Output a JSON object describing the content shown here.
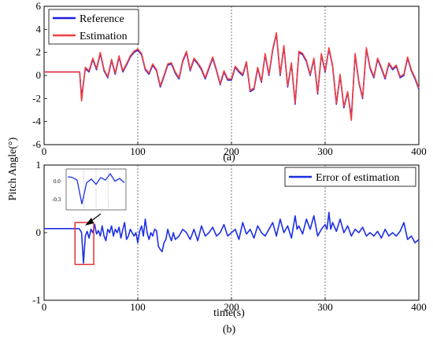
{
  "figure": {
    "ylabel": "Pitch Angle(°)",
    "xlabel": "time(s)",
    "panel_a_label": "(a)",
    "panel_b_label": "(b)"
  },
  "colors": {
    "reference": "#1f1fe0",
    "estimation": "#f04040",
    "error": "#1c2fe6",
    "highlight": "#e43030"
  },
  "chart_data": [
    {
      "type": "line",
      "panel": "(a)",
      "xlim": [
        0,
        400
      ],
      "ylim": [
        -6,
        6
      ],
      "xticks": [
        0,
        100,
        200,
        300,
        400
      ],
      "yticks": [
        -6,
        -4,
        -2,
        0,
        2,
        4,
        6
      ],
      "vlines": [
        100,
        200,
        300
      ],
      "legend_position": "top-left",
      "grid": false,
      "series": [
        {
          "name": "Reference",
          "x": [
            0,
            35,
            38,
            40,
            44,
            48,
            52,
            56,
            60,
            64,
            68,
            72,
            76,
            80,
            84,
            88,
            92,
            96,
            100,
            104,
            108,
            112,
            116,
            120,
            124,
            128,
            132,
            136,
            140,
            144,
            148,
            152,
            156,
            160,
            164,
            168,
            172,
            176,
            180,
            184,
            188,
            192,
            196,
            200,
            204,
            208,
            212,
            216,
            220,
            224,
            228,
            232,
            236,
            240,
            244,
            248,
            252,
            256,
            260,
            264,
            268,
            272,
            276,
            280,
            284,
            288,
            292,
            296,
            300,
            304,
            308,
            312,
            316,
            320,
            324,
            328,
            332,
            336,
            340,
            344,
            348,
            352,
            356,
            360,
            364,
            368,
            372,
            376,
            380,
            384,
            388,
            392,
            396,
            400
          ],
          "y": [
            0.3,
            0.3,
            0.3,
            -1.9,
            0.6,
            0.3,
            1.4,
            0.5,
            1.9,
            0.4,
            -0.2,
            1.3,
            0.1,
            1.6,
            0.3,
            0.9,
            1.6,
            2.0,
            2.2,
            1.8,
            0.5,
            0.1,
            0.9,
            0.4,
            -1.0,
            -0.1,
            0.9,
            1.0,
            0.2,
            -0.3,
            1.2,
            2.0,
            0.4,
            1.4,
            1.0,
            0.5,
            -0.3,
            0.6,
            1.5,
            0.4,
            -0.8,
            0.3,
            -0.4,
            -0.4,
            0.7,
            0.3,
            0.0,
            1.1,
            -1.4,
            -1.2,
            0.6,
            -0.6,
            1.8,
            0.0,
            2.2,
            3.6,
            0.0,
            2.5,
            -1.0,
            1.0,
            -2.5,
            2.0,
            1.8,
            1.2,
            0.0,
            1.4,
            -1.6,
            1.8,
            0.3,
            2.3,
            0.8,
            -2.5,
            0.0,
            -2.8,
            -1.5,
            -3.6,
            1.8,
            -0.6,
            -2.0,
            2.3,
            0.6,
            -0.2,
            1.4,
            0.6,
            -0.3,
            1.0,
            0.5,
            0.8,
            -0.2,
            0.0,
            1.5,
            0.4,
            -0.3,
            -1.2
          ]
        },
        {
          "name": "Estimation",
          "x": [
            0,
            35,
            38,
            40,
            44,
            48,
            52,
            56,
            60,
            64,
            68,
            72,
            76,
            80,
            84,
            88,
            92,
            96,
            100,
            104,
            108,
            112,
            116,
            120,
            124,
            128,
            132,
            136,
            140,
            144,
            148,
            152,
            156,
            160,
            164,
            168,
            172,
            176,
            180,
            184,
            188,
            192,
            196,
            200,
            204,
            208,
            212,
            216,
            220,
            224,
            228,
            232,
            236,
            240,
            244,
            248,
            252,
            256,
            260,
            264,
            268,
            272,
            276,
            280,
            284,
            288,
            292,
            296,
            300,
            304,
            308,
            312,
            316,
            320,
            324,
            328,
            332,
            336,
            340,
            344,
            348,
            352,
            356,
            360,
            364,
            368,
            372,
            376,
            380,
            384,
            388,
            392,
            396,
            400
          ],
          "y": [
            0.3,
            0.3,
            0.3,
            -2.2,
            0.7,
            0.4,
            1.5,
            0.6,
            2.0,
            0.5,
            -0.1,
            1.4,
            0.2,
            1.7,
            0.4,
            1.0,
            1.7,
            2.1,
            2.3,
            1.9,
            0.6,
            0.2,
            1.0,
            0.5,
            -0.9,
            0.0,
            1.0,
            1.1,
            0.3,
            -0.2,
            1.3,
            2.1,
            0.5,
            1.5,
            1.1,
            0.6,
            -0.2,
            0.7,
            1.6,
            0.5,
            -0.7,
            0.4,
            -0.3,
            -0.3,
            0.8,
            0.4,
            0.1,
            1.2,
            -1.3,
            -1.1,
            0.7,
            -0.5,
            1.9,
            0.1,
            2.3,
            3.7,
            0.1,
            2.6,
            -0.9,
            1.1,
            -2.4,
            2.1,
            1.9,
            1.3,
            0.1,
            1.5,
            -1.5,
            1.9,
            0.4,
            2.4,
            0.9,
            -2.4,
            0.1,
            -2.7,
            -1.4,
            -3.9,
            1.9,
            -0.5,
            -1.9,
            2.4,
            0.7,
            -0.1,
            1.5,
            0.7,
            -0.2,
            1.1,
            0.6,
            0.9,
            -0.1,
            0.1,
            1.6,
            0.5,
            -0.2,
            -1.1
          ]
        }
      ]
    },
    {
      "type": "line",
      "panel": "(b)",
      "xlim": [
        0,
        400
      ],
      "ylim": [
        -1,
        1
      ],
      "xticks": [
        0,
        100,
        200,
        300,
        400
      ],
      "yticks": [
        -1,
        0,
        1
      ],
      "vlines": [
        100,
        200,
        300
      ],
      "legend_position": "top-right",
      "grid": false,
      "series": [
        {
          "name": "Error of estimation",
          "x": [
            0,
            36,
            37,
            38,
            40,
            42,
            44,
            46,
            48,
            50,
            52,
            54,
            56,
            58,
            60,
            62,
            64,
            66,
            68,
            70,
            72,
            74,
            76,
            78,
            80,
            82,
            84,
            86,
            88,
            90,
            92,
            94,
            96,
            98,
            100,
            102,
            104,
            106,
            108,
            110,
            112,
            114,
            116,
            118,
            120,
            122,
            124,
            126,
            128,
            130,
            132,
            134,
            136,
            138,
            140,
            144,
            148,
            152,
            156,
            160,
            164,
            168,
            172,
            176,
            180,
            184,
            188,
            192,
            196,
            200,
            204,
            208,
            212,
            216,
            220,
            224,
            228,
            232,
            236,
            240,
            244,
            248,
            252,
            256,
            260,
            264,
            268,
            270,
            272,
            276,
            280,
            284,
            288,
            292,
            296,
            300,
            302,
            304,
            306,
            308,
            312,
            316,
            320,
            324,
            328,
            332,
            336,
            340,
            344,
            348,
            352,
            356,
            360,
            364,
            368,
            372,
            376,
            380,
            384,
            388,
            392,
            396,
            400
          ],
          "y": [
            0.06,
            0.06,
            0.06,
            0.05,
            0.0,
            -0.45,
            -0.05,
            0.02,
            -0.08,
            0.05,
            0.0,
            0.12,
            -0.02,
            0.03,
            -0.05,
            0.1,
            -0.05,
            -0.12,
            0.05,
            0.0,
            0.1,
            -0.05,
            0.05,
            0.0,
            0.08,
            -0.08,
            0.05,
            0.15,
            -0.1,
            -0.05,
            0.05,
            0.0,
            -0.05,
            0.0,
            -0.15,
            0.02,
            0.1,
            -0.05,
            0.2,
            0.0,
            -0.1,
            0.0,
            -0.05,
            0.05,
            0.03,
            -0.2,
            -0.25,
            -0.28,
            -0.15,
            -0.1,
            0.05,
            -0.05,
            -0.12,
            0.0,
            -0.1,
            -0.05,
            0.05,
            0.0,
            -0.1,
            0.05,
            -0.12,
            0.1,
            -0.05,
            0.0,
            0.08,
            -0.05,
            0.0,
            0.12,
            -0.05,
            0.0,
            0.05,
            -0.1,
            0.15,
            -0.02,
            0.05,
            -0.08,
            0.1,
            0.0,
            -0.05,
            0.05,
            0.15,
            -0.05,
            0.2,
            0.0,
            0.1,
            -0.08,
            0.25,
            0.05,
            0.1,
            -0.02,
            0.2,
            0.05,
            0.25,
            -0.05,
            0.05,
            0.12,
            0.05,
            0.3,
            0.05,
            0.15,
            0.02,
            0.2,
            0.0,
            0.1,
            -0.05,
            0.05,
            0.0,
            0.08,
            -0.05,
            0.0,
            -0.05,
            0.02,
            -0.08,
            0.05,
            -0.05,
            0.0,
            -0.05,
            0.02,
            0.15,
            -0.1,
            -0.05,
            -0.15,
            -0.1
          ]
        }
      ],
      "inset": {
        "x": [
          36,
          37,
          38,
          40,
          42,
          44,
          46,
          48,
          50,
          52,
          54,
          56,
          58,
          60
        ],
        "y": [
          0.06,
          0.06,
          0.05,
          0.0,
          -0.45,
          -0.05,
          0.02,
          -0.08,
          0.05,
          0.0,
          0.12,
          -0.02,
          0.03,
          -0.05
        ],
        "yticks": [
          "0.0",
          "-0.3"
        ],
        "highlight_x": [
          33,
          53
        ],
        "highlight_y": [
          -0.47,
          0.15
        ]
      }
    }
  ]
}
